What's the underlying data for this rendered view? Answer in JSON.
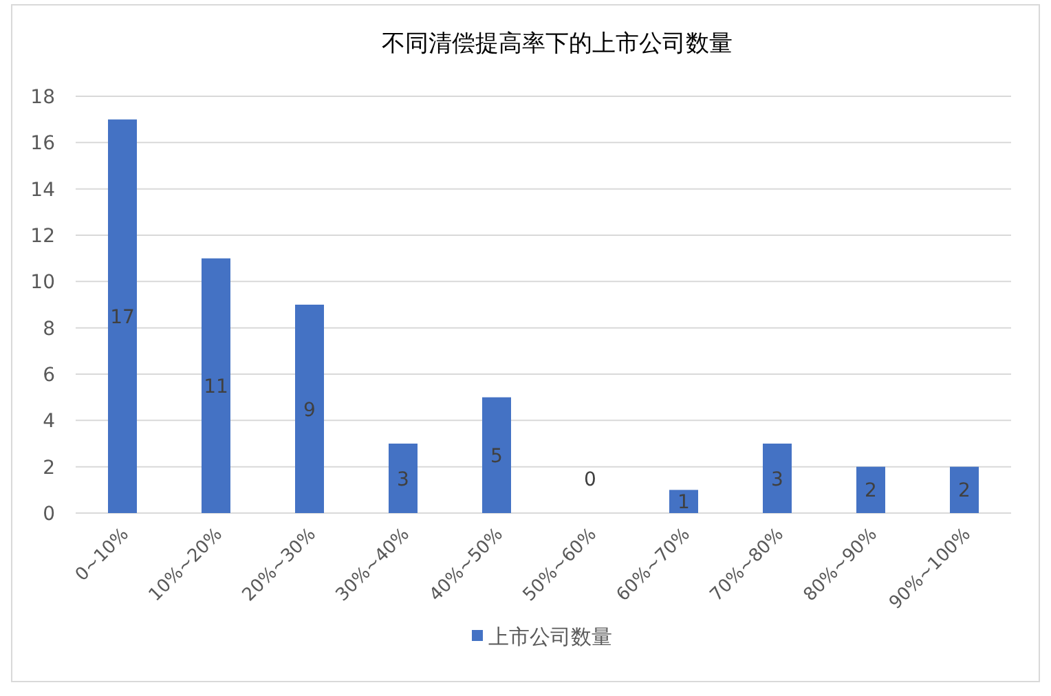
{
  "chart_data": {
    "type": "bar",
    "title": "不同清偿提高率下的上市公司数量",
    "categories": [
      "0~10%",
      "10%~20%",
      "20%~30%",
      "30%~40%",
      "40%~50%",
      "50%~60%",
      "60%~70%",
      "70%~80%",
      "80%~90%",
      "90%~100%"
    ],
    "series": [
      {
        "name": "上市公司数量",
        "color": "#4472c4",
        "values": [
          17,
          11,
          9,
          3,
          5,
          0,
          1,
          3,
          2,
          2
        ]
      }
    ],
    "ylim": [
      0,
      18
    ],
    "yticks": [
      0,
      2,
      4,
      6,
      8,
      10,
      12,
      14,
      16,
      18
    ],
    "grid": "y",
    "legend": "bottom",
    "data_labels": true
  }
}
